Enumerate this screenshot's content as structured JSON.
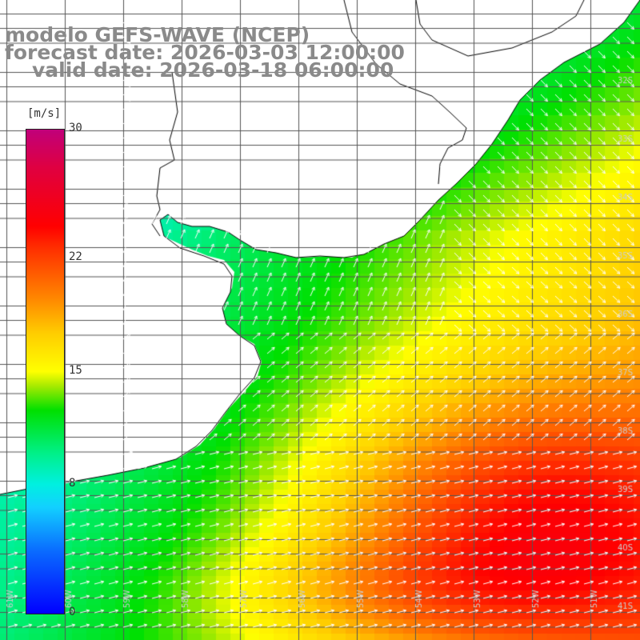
{
  "header": {
    "line1": "modelo GEFS-WAVE (NCEP)",
    "line2": "forecast date: 2026-03-03 12:00:00",
    "line3": "valid date: 2026-03-18 06:00:00"
  },
  "legend": {
    "unit": "[m/s]",
    "ticks": [
      {
        "label": "30",
        "value": 30
      },
      {
        "label": "22",
        "value": 22
      },
      {
        "label": "15",
        "value": 15
      },
      {
        "label": "8",
        "value": 8
      },
      {
        "label": "0",
        "value": 0
      }
    ],
    "range": [
      0,
      30
    ]
  },
  "map": {
    "lat_labels": [
      "32S",
      "33S",
      "34S",
      "35S",
      "36S",
      "37S",
      "38S",
      "39S",
      "40S",
      "41S"
    ],
    "lon_labels": [
      "61W",
      "60W",
      "59W",
      "58W",
      "57W",
      "56W",
      "55W",
      "54W",
      "53W",
      "52W",
      "51W"
    ],
    "colors": {
      "land": "#ffffff",
      "grid": "#555555",
      "coast": "#000000",
      "arrow": "#ffffff"
    }
  }
}
